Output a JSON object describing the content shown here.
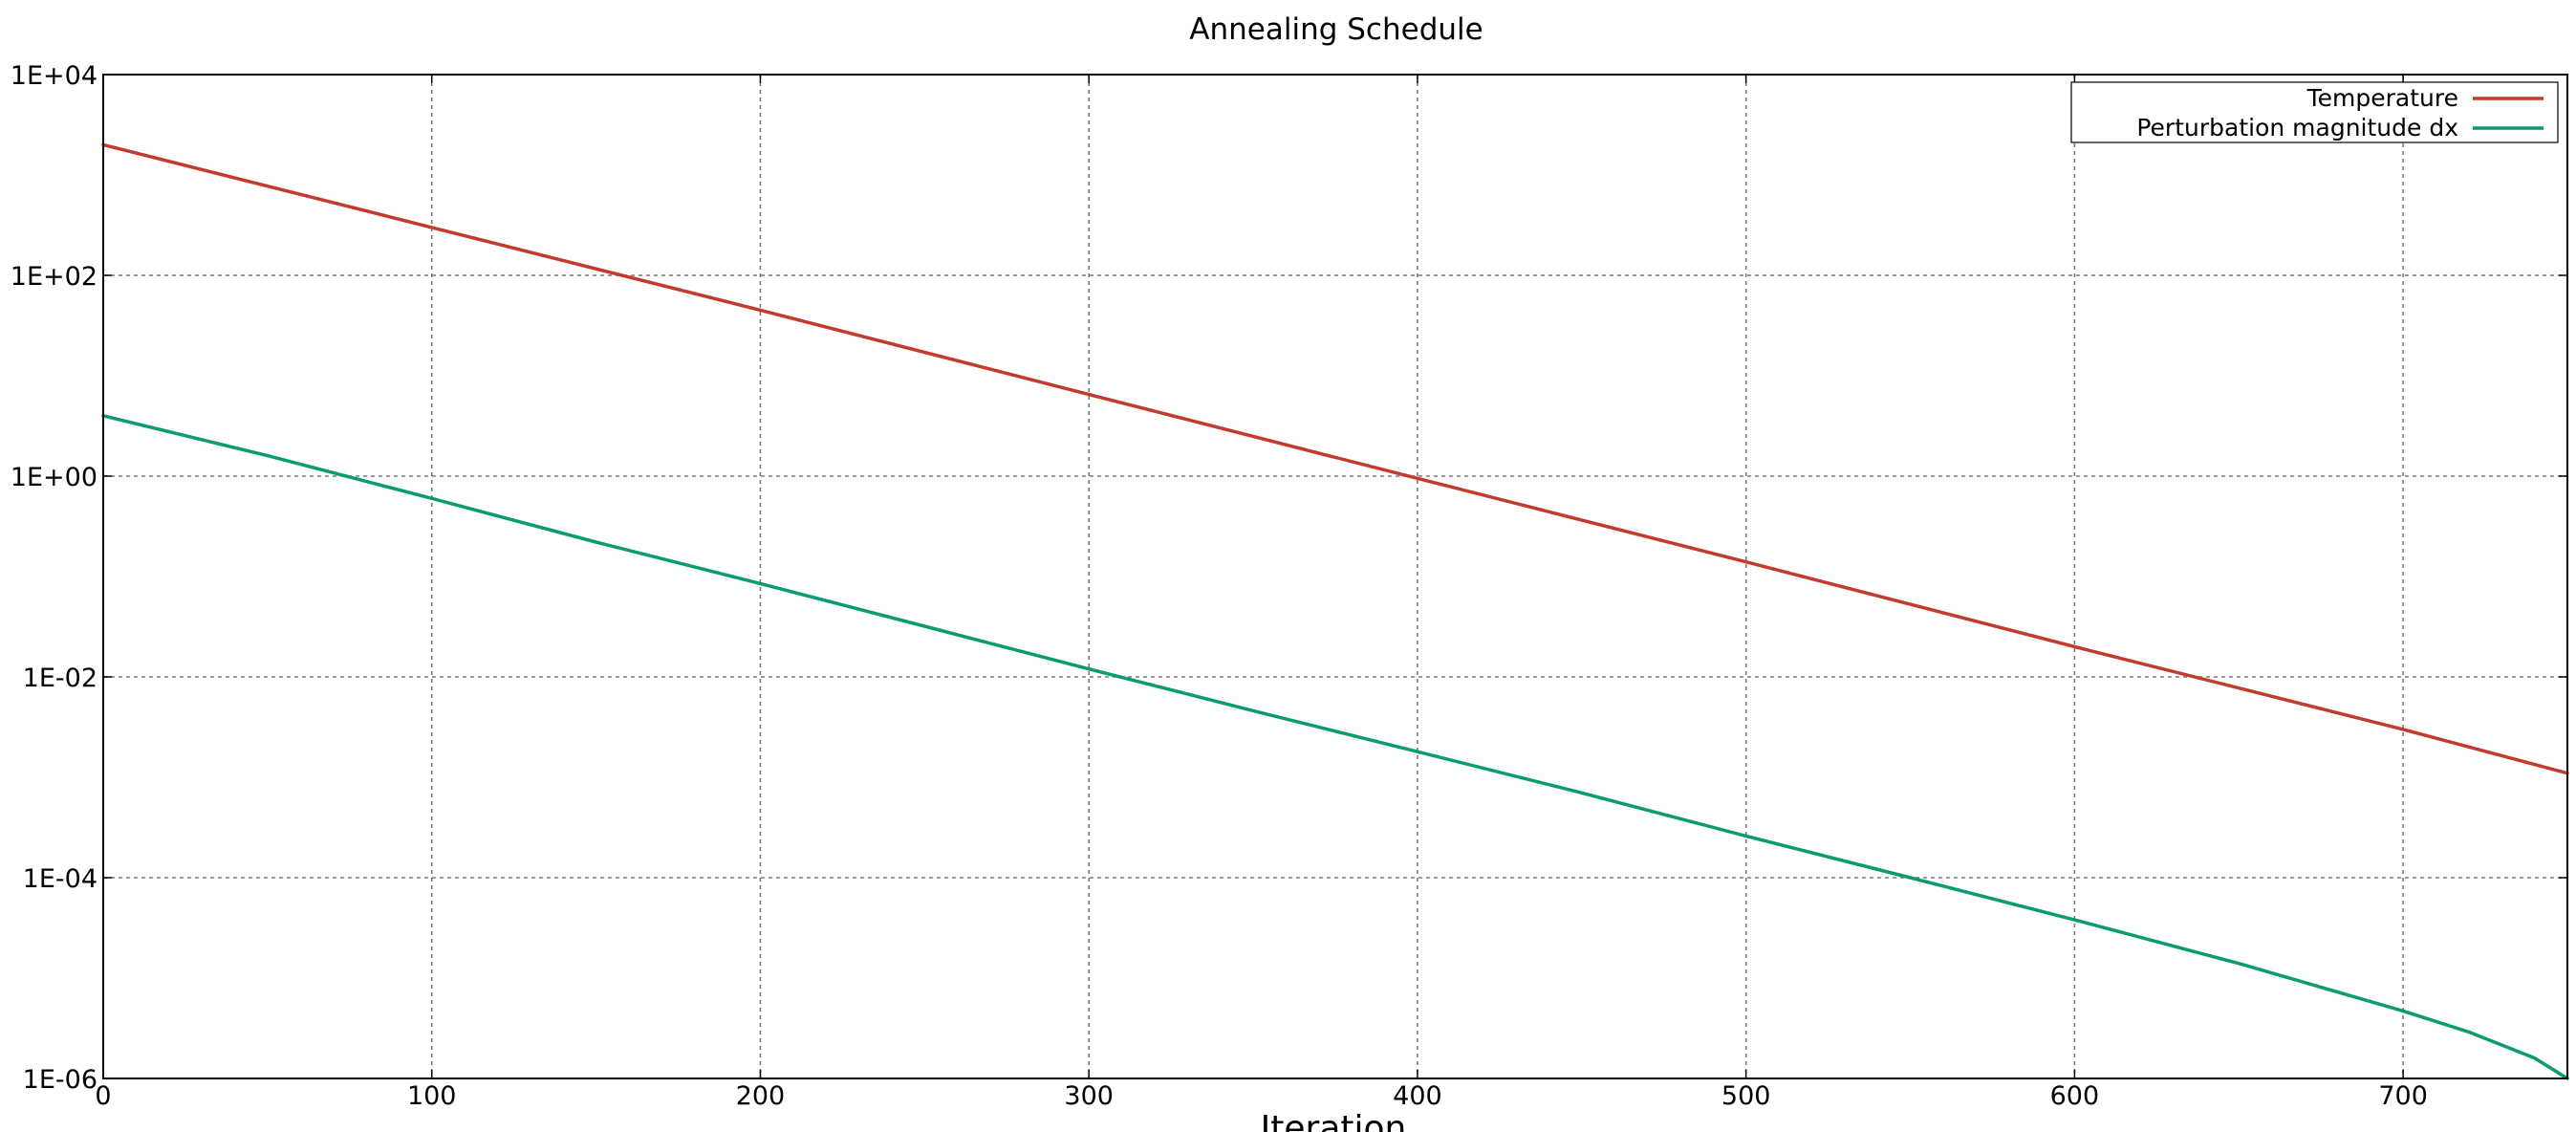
{
  "chart_data": {
    "type": "line",
    "title": "Annealing Schedule",
    "xlabel": "Iteration",
    "ylabel": "",
    "xlim": [
      0,
      750
    ],
    "ylim": [
      1e-06,
      10000
    ],
    "yscale": "log",
    "grid": true,
    "legend_position": "top-right",
    "x_ticks": [
      0,
      100,
      200,
      300,
      400,
      500,
      600,
      700
    ],
    "x_tick_labels": [
      "0",
      "100",
      "200",
      "300",
      "400",
      "500",
      "600",
      "700"
    ],
    "y_ticks": [
      1e-06,
      0.0001,
      0.01,
      1,
      100,
      10000
    ],
    "y_tick_labels": [
      "1E-06",
      "1E-04",
      "1E-02",
      "1E+00",
      "1E+02",
      "1E+04"
    ],
    "series": [
      {
        "name": "Temperature",
        "color": "#c23b2c",
        "x": [
          0,
          100,
          200,
          300,
          400,
          500,
          600,
          700,
          750
        ],
        "y": [
          2000,
          300,
          45,
          6.5,
          0.95,
          0.14,
          0.02,
          0.003,
          0.0011
        ]
      },
      {
        "name": "Perturbation magnitude dx",
        "color": "#0a9b70",
        "x": [
          0,
          50,
          100,
          150,
          200,
          250,
          300,
          350,
          400,
          450,
          500,
          550,
          600,
          650,
          700,
          720,
          740,
          750
        ],
        "y": [
          4,
          1.6,
          0.6,
          0.22,
          0.085,
          0.032,
          0.012,
          0.0046,
          0.0018,
          0.0007,
          0.00026,
          0.0001,
          3.8e-05,
          1.4e-05,
          4.7e-06,
          2.9e-06,
          1.6e-06,
          1e-06
        ]
      }
    ]
  }
}
